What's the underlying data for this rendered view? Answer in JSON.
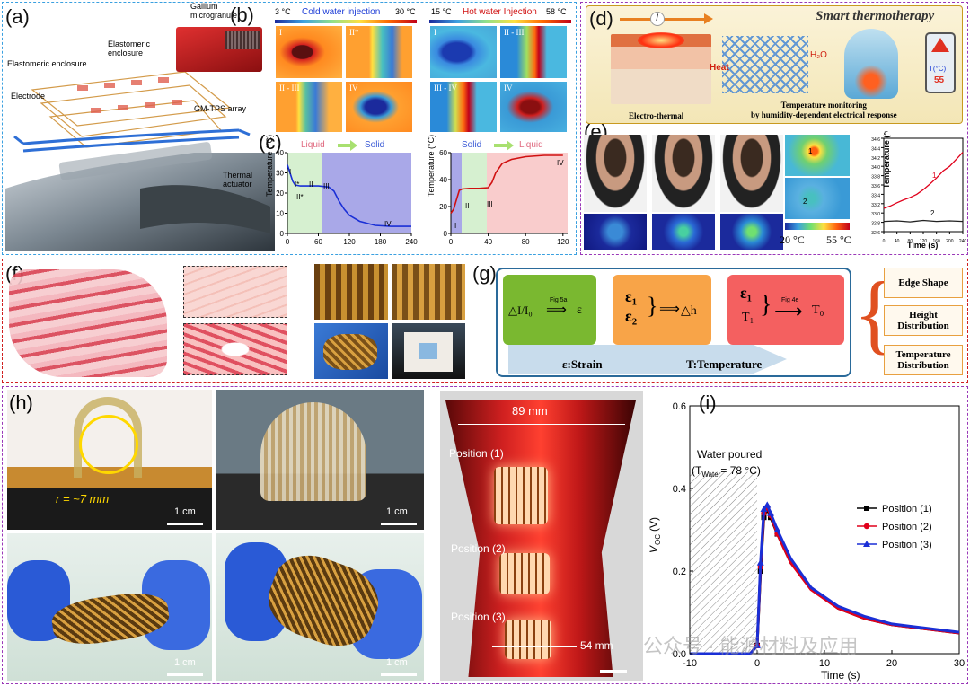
{
  "panels": {
    "a": "(a)",
    "b": "(b)",
    "c": "(c)",
    "d": "(d)",
    "e": "(e)",
    "f": "(f)",
    "g": "(g)",
    "h": "(h)",
    "i": "(i)"
  },
  "a": {
    "gallium": "Gallium\nmicrogranule",
    "enclosure_top": "Elastomeric\nenclosure",
    "enclosure": "Elastomeric enclosure",
    "electrode": "Electrode",
    "gm_tps": "GM-TPS array",
    "actuator": "Thermal\nactuator"
  },
  "b": {
    "cold_min": "3 °C",
    "cold_title": "Cold water injection",
    "cold_max": "30 °C",
    "hot_min": "15 °C",
    "hot_title": "Hot water Injection",
    "hot_max": "58 °C",
    "cold_frames": [
      "I",
      "II*",
      "II - III",
      "IV"
    ],
    "hot_frames": [
      "I",
      "II - III",
      "III - IV",
      "IV"
    ]
  },
  "c": {
    "left": {
      "phase_from": "Liquid",
      "phase_to": "Solid",
      "ylabel": "Temperature (°C)",
      "yticks": [
        "0",
        "10",
        "20",
        "30",
        "40"
      ],
      "xticks": [
        "0",
        "60",
        "120",
        "180",
        "240"
      ],
      "labels": [
        "I",
        "I*",
        "II",
        "II*",
        "III",
        "IV"
      ]
    },
    "right": {
      "phase_from": "Solid",
      "phase_to": "Liquid",
      "ylabel": "Temperature (°C)",
      "yticks": [
        "0",
        "20",
        "40",
        "60"
      ],
      "xticks": [
        "0",
        "40",
        "80",
        "120"
      ],
      "labels": [
        "I",
        "II",
        "III",
        "IV"
      ]
    }
  },
  "d": {
    "title": "Smart thermotherapy",
    "current": "I",
    "heat": "Heat",
    "h2o": "H₂O",
    "caption_left": "Electro-thermal",
    "caption_right": "Temperature monitoring\nby humidity-dependent electrical response",
    "phone_temp": "T(°C)",
    "phone_value": "55"
  },
  "e": {
    "scale_min": "20 °C",
    "scale_max": "55 °C",
    "spot1": "1",
    "spot2": "2",
    "plot": {
      "ylabel": "Temperature (°C)",
      "xlabel": "Time (s)",
      "yticks": [
        "32.6",
        "32.8",
        "33.0",
        "33.2",
        "33.4",
        "33.6",
        "33.8",
        "34.0",
        "34.2",
        "34.4",
        "34.6"
      ],
      "xticks": [
        "0",
        "40",
        "80",
        "120",
        "160",
        "200",
        "240"
      ],
      "curve1": "1",
      "curve2": "2"
    }
  },
  "g": {
    "box1_left": "△I/I₀",
    "box1_fig": "Fig 5a",
    "box1_right": "ε",
    "box2_top": "ε₁",
    "box2_bottom": "ε₂",
    "box2_right": "△h",
    "box3_top": "ε₁",
    "box3_bottom": "T₁",
    "box3_fig": "Fig 4e",
    "box3_right": "T₀",
    "legend_strain": "ε:Strain",
    "legend_temp": "T:Temperature",
    "outputs": [
      "Edge Shape",
      "Height\nDistribution",
      "Temperature\nDistribution"
    ]
  },
  "h": {
    "radius": "r = ~7 mm",
    "scale": "1 cm",
    "width_top": "89  mm",
    "width_bottom": "54 mm",
    "positions": [
      "Position (1)",
      "Position (2)",
      "Position (3)"
    ]
  },
  "i": {
    "annotation_line1": "Water poured",
    "annotation_line2": "(T",
    "annotation_sub": "Water",
    "annotation_tail": "= 78 °C)",
    "ylabel_main": "V",
    "ylabel_sub": "OC",
    "ylabel_unit": "(V)",
    "xlabel": "Time (s)",
    "watermark": "公众号 · 能源材料及应用"
  },
  "chart_data": [
    {
      "type": "line",
      "title": "",
      "xlabel": "Time (s)",
      "ylabel": "VOC (V)",
      "xlim": [
        -10,
        30
      ],
      "ylim": [
        0,
        0.6
      ],
      "xticks": [
        -10,
        0,
        10,
        20,
        30
      ],
      "yticks": [
        0.0,
        0.2,
        0.4,
        0.6
      ],
      "legend": "right",
      "series": [
        {
          "name": "Position (1)",
          "color": "#000000",
          "marker": "square",
          "x": [
            -10,
            -1,
            0,
            0.5,
            1,
            1.5,
            2,
            3,
            5,
            8,
            12,
            16,
            20,
            25,
            30
          ],
          "y": [
            0.0,
            0.0,
            0.02,
            0.2,
            0.33,
            0.35,
            0.33,
            0.29,
            0.22,
            0.16,
            0.11,
            0.085,
            0.07,
            0.06,
            0.05
          ]
        },
        {
          "name": "Position (2)",
          "color": "#e0001b",
          "marker": "circle",
          "x": [
            -10,
            -1,
            0,
            0.5,
            1,
            1.5,
            2,
            3,
            5,
            8,
            12,
            16,
            20,
            25,
            30
          ],
          "y": [
            0.0,
            0.0,
            0.02,
            0.21,
            0.34,
            0.355,
            0.335,
            0.29,
            0.22,
            0.155,
            0.11,
            0.085,
            0.07,
            0.06,
            0.05
          ]
        },
        {
          "name": "Position (3)",
          "color": "#1a2fd6",
          "marker": "triangle",
          "x": [
            -10,
            -1,
            0,
            0.5,
            1,
            1.5,
            2,
            3,
            5,
            8,
            12,
            16,
            20,
            25,
            30
          ],
          "y": [
            0.0,
            0.0,
            0.02,
            0.22,
            0.35,
            0.36,
            0.34,
            0.3,
            0.23,
            0.16,
            0.115,
            0.09,
            0.072,
            0.062,
            0.052
          ]
        }
      ]
    },
    {
      "type": "line",
      "xlabel": "",
      "ylabel": "Temperature (°C)",
      "xlim": [
        0,
        240
      ],
      "ylim": [
        0,
        40
      ],
      "series": [
        {
          "x": [
            0,
            5,
            10,
            15,
            25,
            40,
            60,
            80,
            90,
            100,
            110,
            120,
            140,
            170,
            200,
            240
          ],
          "y": [
            34,
            30,
            26,
            24,
            23.5,
            23.5,
            23.5,
            23,
            21,
            16,
            12,
            9,
            6,
            4,
            3.5,
            3.5
          ]
        }
      ]
    },
    {
      "type": "line",
      "xlabel": "",
      "ylabel": "Temperature (°C)",
      "xlim": [
        0,
        125
      ],
      "ylim": [
        0,
        60
      ],
      "series": [
        {
          "x": [
            0,
            3,
            6,
            9,
            12,
            20,
            30,
            40,
            44,
            48,
            55,
            65,
            80,
            100,
            120
          ],
          "y": [
            15,
            18,
            25,
            32,
            33,
            33.5,
            33.5,
            34,
            38,
            45,
            52,
            55,
            57,
            58,
            58
          ]
        }
      ]
    },
    {
      "type": "line",
      "xlabel": "Time (s)",
      "ylabel": "Temperature (°C)",
      "xlim": [
        0,
        240
      ],
      "ylim": [
        32.6,
        34.6
      ],
      "series": [
        {
          "name": "1",
          "color": "#e0001b",
          "x": [
            0,
            20,
            40,
            60,
            80,
            100,
            120,
            140,
            160,
            180,
            200,
            220,
            240
          ],
          "y": [
            33.1,
            33.15,
            33.22,
            33.28,
            33.33,
            33.4,
            33.5,
            33.62,
            33.75,
            33.9,
            34.0,
            34.15,
            34.3
          ]
        },
        {
          "name": "2",
          "color": "#222222",
          "x": [
            0,
            40,
            80,
            120,
            160,
            200,
            240
          ],
          "y": [
            32.82,
            32.83,
            32.81,
            32.84,
            32.82,
            32.83,
            32.82
          ]
        }
      ]
    }
  ]
}
